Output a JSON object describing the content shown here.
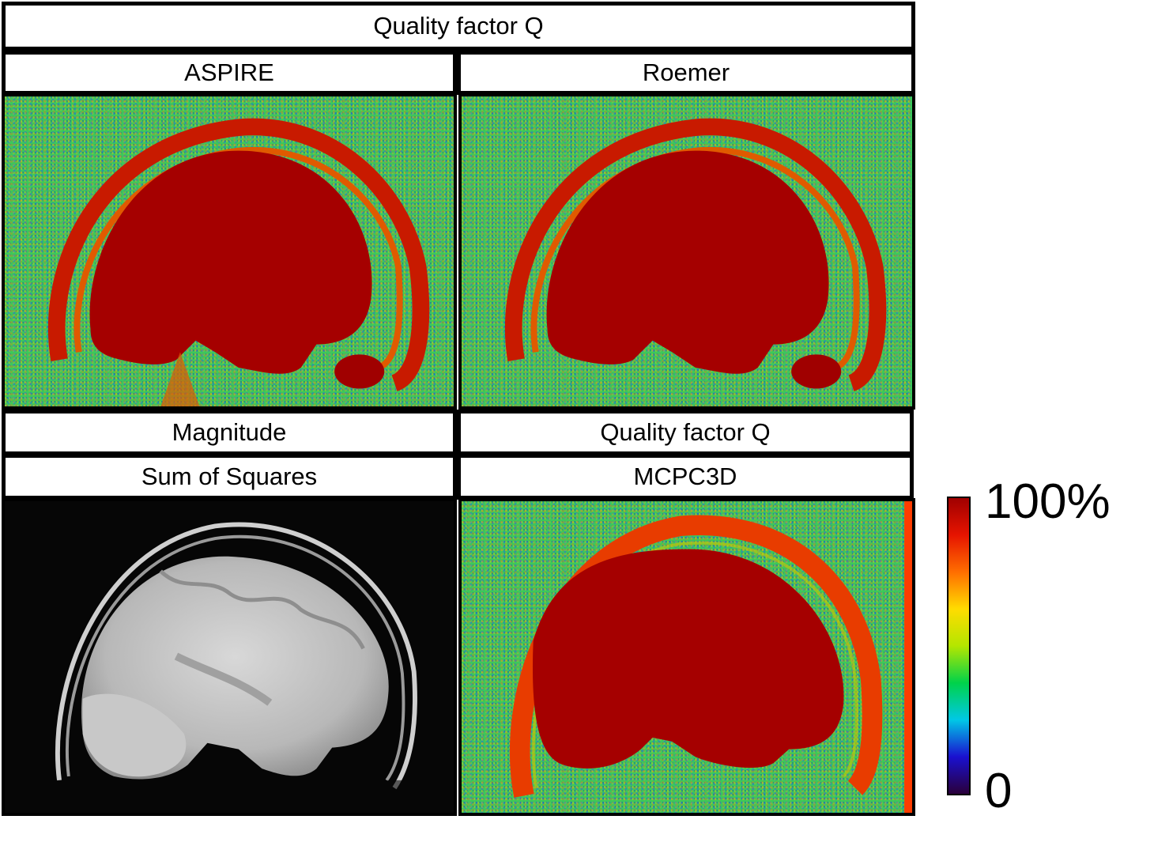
{
  "top": {
    "title": "Quality factor Q"
  },
  "panels": {
    "aspire": {
      "label": "ASPIRE"
    },
    "roemer": {
      "label": "Roemer"
    },
    "sos": {
      "label_line1": "Magnitude",
      "label_line2": "Sum of Squares"
    },
    "mcpc3d": {
      "label_line1": "Quality factor Q",
      "label_line2": "MCPC3D"
    }
  },
  "colorbar": {
    "max_label": "100%",
    "min_label": "0",
    "colormap": [
      "#2a003a",
      "#1a10d0",
      "#00c8e6",
      "#00d24a",
      "#b4e600",
      "#ffdc00",
      "#ff6e00",
      "#e61400",
      "#a00000"
    ]
  }
}
